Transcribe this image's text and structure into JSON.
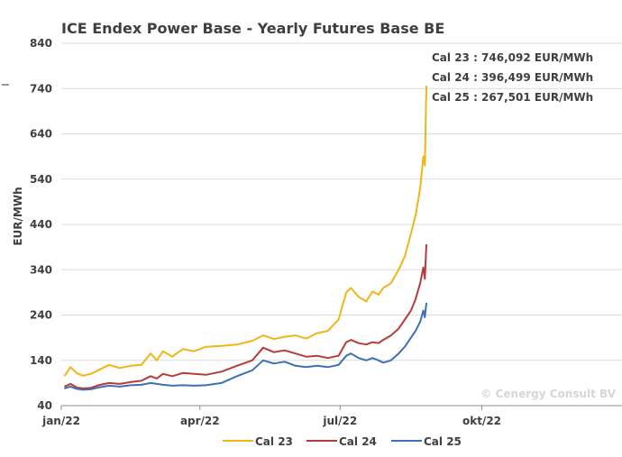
{
  "chart_data": {
    "type": "line",
    "title": "ICE Endex Power Base - Yearly Futures Base BE",
    "xlabel": "",
    "ylabel": "EUR/MWh",
    "ylim": [
      40,
      840
    ],
    "yticks": [
      40,
      140,
      240,
      340,
      440,
      540,
      640,
      740,
      840
    ],
    "xticks": [
      "jan/22",
      "apr/22",
      "jul/22",
      "okt/22"
    ],
    "x_start": "2022-01-01",
    "x_end": "2022-12-31",
    "grid": true,
    "legend_position": "bottom",
    "annotations": [
      "Cal 23 : 746,092 EUR/MWh",
      "Cal 24 : 396,499 EUR/MWh",
      "Cal 25 : 267,501 EUR/MWh"
    ],
    "watermark": "© Cenergy Consult BV",
    "series": [
      {
        "name": "Cal 23",
        "color": "#f2b516",
        "points": [
          [
            "2022-01-03",
            105
          ],
          [
            "2022-01-07",
            125
          ],
          [
            "2022-01-11",
            112
          ],
          [
            "2022-01-15",
            106
          ],
          [
            "2022-01-20",
            110
          ],
          [
            "2022-01-25",
            118
          ],
          [
            "2022-02-01",
            130
          ],
          [
            "2022-02-08",
            123
          ],
          [
            "2022-02-15",
            128
          ],
          [
            "2022-02-22",
            130
          ],
          [
            "2022-02-28",
            155
          ],
          [
            "2022-03-04",
            140
          ],
          [
            "2022-03-08",
            160
          ],
          [
            "2022-03-14",
            148
          ],
          [
            "2022-03-21",
            165
          ],
          [
            "2022-03-28",
            160
          ],
          [
            "2022-04-05",
            170
          ],
          [
            "2022-04-15",
            172
          ],
          [
            "2022-04-25",
            175
          ],
          [
            "2022-05-05",
            183
          ],
          [
            "2022-05-12",
            195
          ],
          [
            "2022-05-19",
            187
          ],
          [
            "2022-05-26",
            192
          ],
          [
            "2022-06-02",
            195
          ],
          [
            "2022-06-09",
            188
          ],
          [
            "2022-06-16",
            200
          ],
          [
            "2022-06-23",
            205
          ],
          [
            "2022-06-30",
            230
          ],
          [
            "2022-07-05",
            290
          ],
          [
            "2022-07-08",
            300
          ],
          [
            "2022-07-13",
            280
          ],
          [
            "2022-07-18",
            270
          ],
          [
            "2022-07-22",
            292
          ],
          [
            "2022-07-26",
            285
          ],
          [
            "2022-07-29",
            300
          ],
          [
            "2022-08-03",
            310
          ],
          [
            "2022-08-08",
            340
          ],
          [
            "2022-08-12",
            370
          ],
          [
            "2022-08-16",
            420
          ],
          [
            "2022-08-19",
            460
          ],
          [
            "2022-08-22",
            520
          ],
          [
            "2022-08-24",
            590
          ],
          [
            "2022-08-25",
            570
          ],
          [
            "2022-08-26",
            746
          ]
        ]
      },
      {
        "name": "Cal 24",
        "color": "#b83b3b",
        "points": [
          [
            "2022-01-03",
            82
          ],
          [
            "2022-01-07",
            88
          ],
          [
            "2022-01-11",
            80
          ],
          [
            "2022-01-15",
            78
          ],
          [
            "2022-01-20",
            79
          ],
          [
            "2022-01-25",
            85
          ],
          [
            "2022-02-01",
            90
          ],
          [
            "2022-02-08",
            88
          ],
          [
            "2022-02-15",
            92
          ],
          [
            "2022-02-22",
            95
          ],
          [
            "2022-02-28",
            105
          ],
          [
            "2022-03-04",
            100
          ],
          [
            "2022-03-08",
            110
          ],
          [
            "2022-03-14",
            105
          ],
          [
            "2022-03-21",
            112
          ],
          [
            "2022-03-28",
            110
          ],
          [
            "2022-04-05",
            108
          ],
          [
            "2022-04-15",
            115
          ],
          [
            "2022-04-25",
            128
          ],
          [
            "2022-05-05",
            140
          ],
          [
            "2022-05-12",
            168
          ],
          [
            "2022-05-19",
            158
          ],
          [
            "2022-05-26",
            162
          ],
          [
            "2022-06-02",
            155
          ],
          [
            "2022-06-09",
            148
          ],
          [
            "2022-06-16",
            150
          ],
          [
            "2022-06-23",
            145
          ],
          [
            "2022-06-30",
            150
          ],
          [
            "2022-07-05",
            180
          ],
          [
            "2022-07-08",
            185
          ],
          [
            "2022-07-13",
            178
          ],
          [
            "2022-07-18",
            175
          ],
          [
            "2022-07-22",
            180
          ],
          [
            "2022-07-26",
            178
          ],
          [
            "2022-07-29",
            185
          ],
          [
            "2022-08-03",
            195
          ],
          [
            "2022-08-08",
            210
          ],
          [
            "2022-08-12",
            230
          ],
          [
            "2022-08-16",
            250
          ],
          [
            "2022-08-19",
            275
          ],
          [
            "2022-08-22",
            310
          ],
          [
            "2022-08-24",
            345
          ],
          [
            "2022-08-25",
            320
          ],
          [
            "2022-08-26",
            396
          ]
        ]
      },
      {
        "name": "Cal 25",
        "color": "#3f6fb5",
        "points": [
          [
            "2022-01-03",
            78
          ],
          [
            "2022-01-07",
            82
          ],
          [
            "2022-01-11",
            77
          ],
          [
            "2022-01-15",
            75
          ],
          [
            "2022-01-20",
            76
          ],
          [
            "2022-01-25",
            80
          ],
          [
            "2022-02-01",
            84
          ],
          [
            "2022-02-08",
            82
          ],
          [
            "2022-02-15",
            85
          ],
          [
            "2022-02-22",
            86
          ],
          [
            "2022-02-28",
            90
          ],
          [
            "2022-03-04",
            88
          ],
          [
            "2022-03-08",
            86
          ],
          [
            "2022-03-14",
            84
          ],
          [
            "2022-03-21",
            85
          ],
          [
            "2022-03-28",
            84
          ],
          [
            "2022-04-05",
            85
          ],
          [
            "2022-04-15",
            90
          ],
          [
            "2022-04-25",
            105
          ],
          [
            "2022-05-05",
            118
          ],
          [
            "2022-05-12",
            140
          ],
          [
            "2022-05-19",
            133
          ],
          [
            "2022-05-26",
            137
          ],
          [
            "2022-06-02",
            128
          ],
          [
            "2022-06-09",
            125
          ],
          [
            "2022-06-16",
            128
          ],
          [
            "2022-06-23",
            125
          ],
          [
            "2022-06-30",
            130
          ],
          [
            "2022-07-05",
            150
          ],
          [
            "2022-07-08",
            155
          ],
          [
            "2022-07-13",
            145
          ],
          [
            "2022-07-18",
            140
          ],
          [
            "2022-07-22",
            145
          ],
          [
            "2022-07-26",
            140
          ],
          [
            "2022-07-29",
            135
          ],
          [
            "2022-08-03",
            140
          ],
          [
            "2022-08-08",
            155
          ],
          [
            "2022-08-12",
            170
          ],
          [
            "2022-08-16",
            190
          ],
          [
            "2022-08-19",
            205
          ],
          [
            "2022-08-22",
            225
          ],
          [
            "2022-08-24",
            250
          ],
          [
            "2022-08-25",
            235
          ],
          [
            "2022-08-26",
            267
          ]
        ]
      }
    ]
  }
}
